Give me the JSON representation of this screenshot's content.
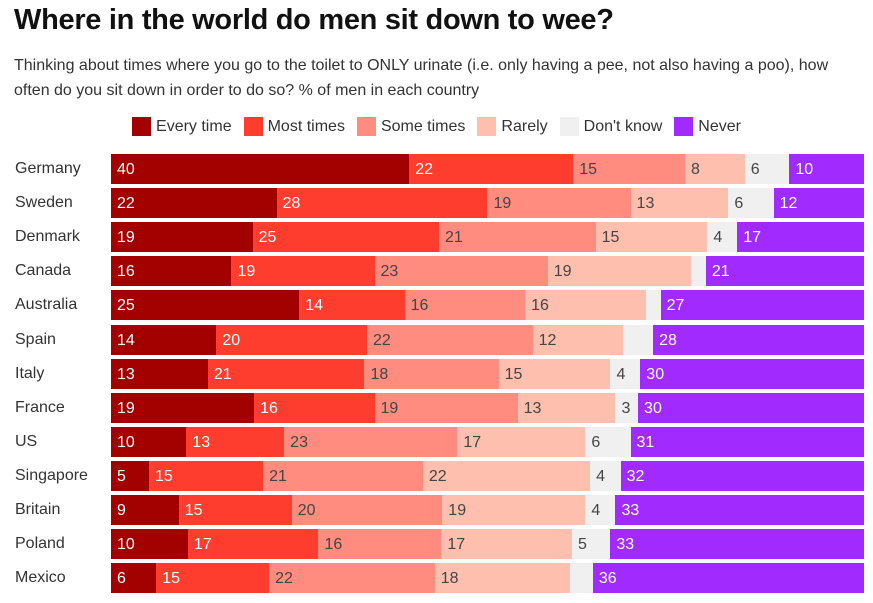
{
  "chart_data": {
    "type": "bar",
    "orientation": "horizontal",
    "stacked": true,
    "title": "Where in the world do men sit down to wee?",
    "subtitle": "Thinking about times where you go to the toilet to ONLY urinate (i.e. only having a pee, not also having a poo), how often do you sit down in order to do so? % of men in each country",
    "xlabel": "",
    "ylabel": "",
    "xlim": [
      0,
      100
    ],
    "grid": false,
    "legend_position": "top-center",
    "categories": [
      "Germany",
      "Sweden",
      "Denmark",
      "Canada",
      "Australia",
      "Spain",
      "Italy",
      "France",
      "US",
      "Singapore",
      "Britain",
      "Poland",
      "Mexico"
    ],
    "series": [
      {
        "name": "Every time",
        "color": "#a30000",
        "text": "dark",
        "values": [
          40,
          22,
          19,
          16,
          25,
          14,
          13,
          19,
          10,
          5,
          9,
          10,
          6
        ],
        "labels": [
          "40",
          "22",
          "19",
          "16",
          "25",
          "14",
          "13",
          "19",
          "10",
          "5",
          "9",
          "10",
          "6"
        ]
      },
      {
        "name": "Most times",
        "color": "#ff3d2e",
        "text": "dark",
        "values": [
          22,
          28,
          25,
          19,
          14,
          20,
          21,
          16,
          13,
          15,
          15,
          17,
          15
        ],
        "labels": [
          "22",
          "28",
          "25",
          "19",
          "14",
          "20",
          "21",
          "16",
          "13",
          "15",
          "15",
          "17",
          "15"
        ]
      },
      {
        "name": "Some times",
        "color": "#ff8c7e",
        "text": "light",
        "values": [
          15,
          19,
          21,
          23,
          16,
          22,
          18,
          19,
          23,
          21,
          20,
          16,
          22
        ],
        "labels": [
          "15",
          "19",
          "21",
          "23",
          "16",
          "22",
          "18",
          "19",
          "23",
          "21",
          "20",
          "16",
          "22"
        ]
      },
      {
        "name": "Rarely",
        "color": "#ffbfae",
        "text": "light",
        "values": [
          8,
          13,
          15,
          19,
          16,
          12,
          15,
          13,
          17,
          22,
          19,
          17,
          18
        ],
        "labels": [
          "8",
          "13",
          "15",
          "19",
          "16",
          "12",
          "15",
          "13",
          "17",
          "22",
          "19",
          "17",
          "18"
        ]
      },
      {
        "name": "Don't know",
        "color": "#f0f0f0",
        "text": "light",
        "values": [
          6,
          6,
          4,
          2,
          2,
          4,
          4,
          3,
          6,
          4,
          4,
          5,
          3
        ],
        "labels": [
          "6",
          "6",
          "4",
          "",
          "",
          "",
          "4",
          "3",
          "6",
          "4",
          "4",
          "5",
          ""
        ]
      },
      {
        "name": "Never",
        "color": "#a12bff",
        "text": "dark",
        "values": [
          10,
          12,
          17,
          21,
          27,
          28,
          30,
          30,
          31,
          32,
          33,
          33,
          36
        ],
        "labels": [
          "10",
          "12",
          "17",
          "21",
          "27",
          "28",
          "30",
          "30",
          "31",
          "32",
          "33",
          "33",
          "36"
        ]
      }
    ]
  }
}
